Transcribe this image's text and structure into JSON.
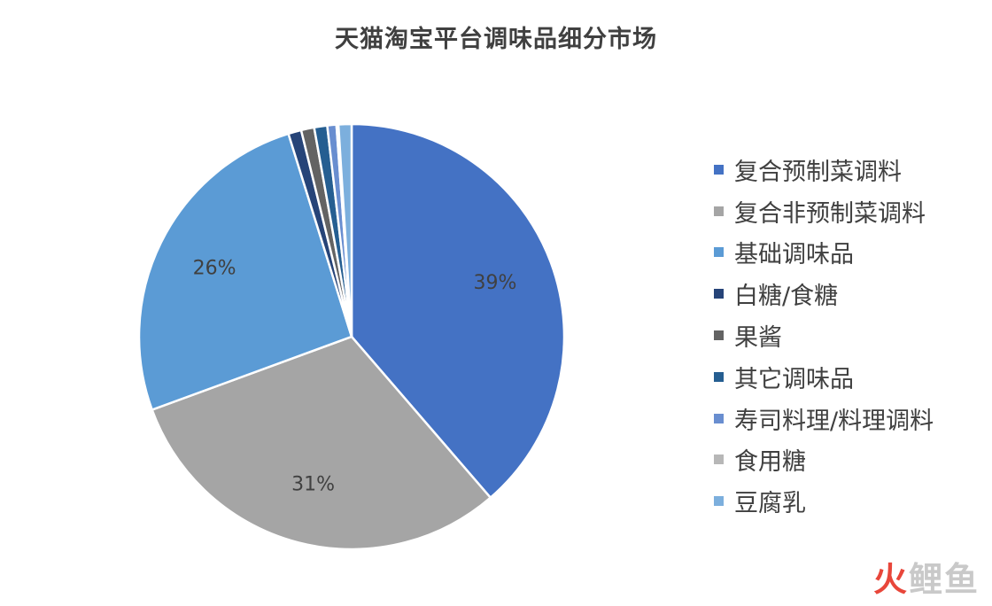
{
  "chart_data": {
    "type": "pie",
    "title": "天猫淘宝平台调味品细分市场",
    "legend_position": "right",
    "slices": [
      {
        "label": "复合预制菜调料",
        "value": 39,
        "data_label": "39%",
        "color": "#4472c4"
      },
      {
        "label": "复合非预制菜调料",
        "value": 31,
        "data_label": "31%",
        "color": "#a5a5a5"
      },
      {
        "label": "基础调味品",
        "value": 26,
        "data_label": "26%",
        "color": "#5b9bd5"
      },
      {
        "label": "白糖/食糖",
        "value": 1,
        "data_label": "",
        "color": "#264478"
      },
      {
        "label": "果酱",
        "value": 1,
        "data_label": "",
        "color": "#636363"
      },
      {
        "label": "其它调味品",
        "value": 1,
        "data_label": "",
        "color": "#255e91"
      },
      {
        "label": "寿司料理/料理调料",
        "value": 0.7,
        "data_label": "",
        "color": "#698ed0"
      },
      {
        "label": "食用糖",
        "value": 0.15,
        "data_label": "",
        "color": "#b7b7b7"
      },
      {
        "label": "豆腐乳",
        "value": 1,
        "data_label": "",
        "color": "#7cafdd"
      }
    ]
  },
  "watermark": {
    "part1": "火",
    "part2": "鲤鱼"
  }
}
